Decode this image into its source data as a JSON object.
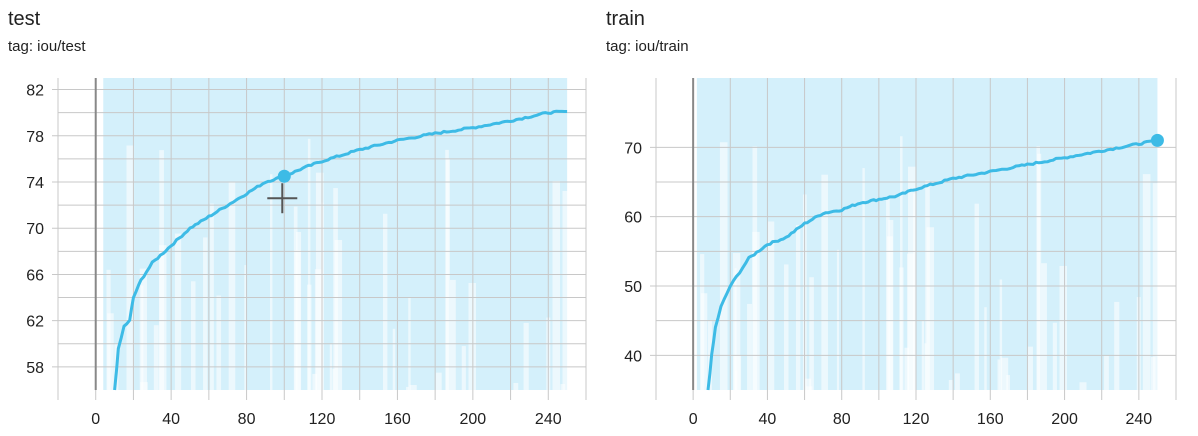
{
  "colors": {
    "line": "#3dbbe6",
    "band": "#cfeefb",
    "grid": "#c8c8c8",
    "axis": "#888888"
  },
  "chart_data": [
    {
      "type": "line",
      "title": "test",
      "tag": "tag: iou/test",
      "xlim": [
        -20,
        260
      ],
      "ylim": [
        56,
        83
      ],
      "xticks": [
        0,
        40,
        80,
        120,
        160,
        200,
        240
      ],
      "yticks": [
        58,
        62,
        66,
        70,
        74,
        78,
        82
      ],
      "grid": true,
      "band_range": [
        50,
        90
      ],
      "highlight_point": {
        "x": 100,
        "y": 74.5
      },
      "series": [
        {
          "x": [
            10,
            12,
            15,
            18,
            20,
            24,
            30,
            40,
            50,
            60,
            70,
            80,
            90,
            100,
            110,
            120,
            140,
            160,
            180,
            200,
            220,
            240,
            250
          ],
          "y": [
            56,
            59.5,
            61.5,
            62,
            64,
            65.5,
            67,
            68.5,
            70,
            71,
            72,
            73,
            74,
            74.5,
            75.2,
            75.8,
            76.8,
            77.6,
            78.2,
            78.7,
            79.3,
            80,
            80.1
          ]
        }
      ]
    },
    {
      "type": "line",
      "title": "train",
      "tag": "tag: iou/train",
      "xlim": [
        -20,
        260
      ],
      "ylim": [
        35,
        80
      ],
      "xticks": [
        0,
        40,
        80,
        120,
        160,
        200,
        240
      ],
      "yticks": [
        40,
        50,
        60,
        70
      ],
      "grid": true,
      "band_range": [
        30,
        90
      ],
      "highlight_point": {
        "x": 250,
        "y": 71
      },
      "series": [
        {
          "x": [
            8,
            10,
            12,
            15,
            20,
            25,
            30,
            40,
            50,
            60,
            70,
            80,
            90,
            100,
            110,
            120,
            140,
            160,
            180,
            200,
            220,
            240,
            250
          ],
          "y": [
            35,
            40,
            44,
            47,
            50,
            52,
            54,
            56,
            57,
            59,
            60.5,
            61,
            62,
            62.5,
            63,
            64,
            65.5,
            66.5,
            67.5,
            68.5,
            69.5,
            70.5,
            71
          ]
        }
      ]
    }
  ]
}
